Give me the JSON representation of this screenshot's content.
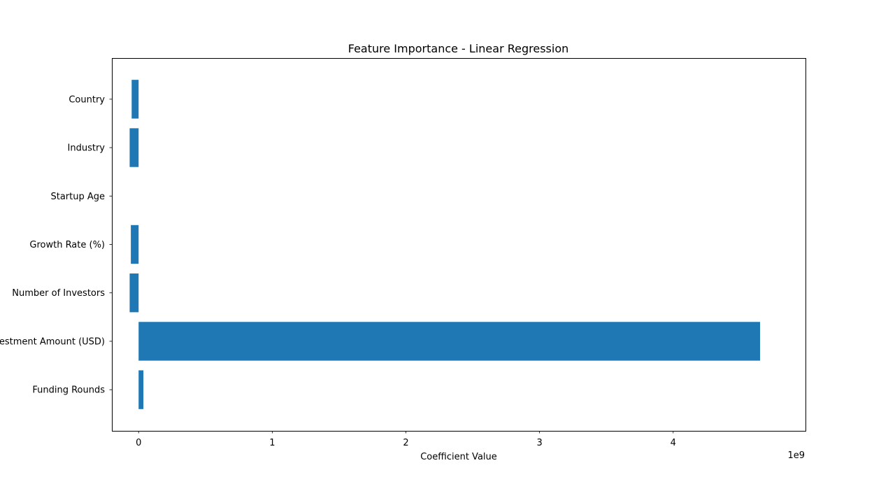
{
  "chart_data": {
    "type": "bar",
    "orientation": "horizontal",
    "title": "Feature Importance - Linear Regression",
    "xlabel": "Coefficient Value",
    "ylabel": "",
    "x_scale_label": "1e9",
    "x_tick_labels": [
      "0",
      "1",
      "2",
      "3",
      "4"
    ],
    "x_ticks": [
      0,
      1,
      2,
      3,
      4
    ],
    "xlim": [
      -0.2,
      4.99
    ],
    "categories": [
      "Funding Rounds",
      "Investment Amount (USD)",
      "Number of Investors",
      "Growth Rate (%)",
      "Startup Age",
      "Industry",
      "Country"
    ],
    "values": [
      0.036,
      4.65,
      -0.067,
      -0.058,
      0.0,
      -0.067,
      -0.052
    ],
    "value_unit": "1e9",
    "grid": false,
    "legend": "none",
    "bar_color": "#1f77b4"
  }
}
